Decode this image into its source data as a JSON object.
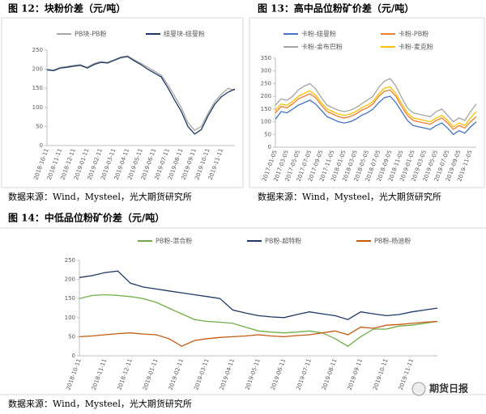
{
  "chart_data": [
    {
      "type": "line",
      "title": "图 12：块粉价差（元/吨）",
      "categories": [
        "2018-10-11",
        null,
        "2018-11-11",
        null,
        "2018-12-11",
        null,
        "2019-01-11",
        null,
        "2019-02-11",
        null,
        "2019-03-11",
        null,
        "2019-04-11",
        null,
        "2019-05-11",
        null,
        "2019-06-11",
        null,
        "2019-07-11",
        null,
        "2019-08-11",
        null,
        "2019-09-11",
        null,
        "2019-10-11",
        null,
        "2019-11-11",
        null,
        null
      ],
      "series": [
        {
          "name": "PB块-PB粉",
          "color": "#a6a6a6",
          "values": [
            200,
            198,
            205,
            207,
            210,
            212,
            205,
            215,
            220,
            218,
            225,
            232,
            235,
            225,
            215,
            205,
            195,
            185,
            160,
            130,
            100,
            60,
            40,
            50,
            85,
            115,
            135,
            150,
            145
          ]
        },
        {
          "name": "纽曼块-纽曼粉",
          "color": "#1f3864",
          "values": [
            198,
            196,
            203,
            205,
            208,
            210,
            203,
            212,
            218,
            216,
            223,
            230,
            233,
            222,
            212,
            200,
            190,
            180,
            152,
            120,
            90,
            50,
            30,
            42,
            78,
            108,
            128,
            140,
            148
          ]
        }
      ],
      "ylim": [
        0,
        250
      ],
      "yticks": [
        0,
        50,
        100,
        150,
        200,
        250
      ]
    },
    {
      "type": "line",
      "title": "图 13：高中品位粉矿价差（元/吨）",
      "categories": [
        "2017-01-05",
        null,
        "2017-03-05",
        null,
        "2017-05-05",
        null,
        "2017-07-05",
        null,
        "2017-09-05",
        null,
        "2017-11-05",
        null,
        "2018-01-05",
        null,
        "2018-03-05",
        null,
        "2018-05-05",
        null,
        "2018-07-05",
        null,
        "2018-09-05",
        null,
        "2018-11-05",
        null,
        "2019-01-05",
        null,
        "2019-03-05",
        null,
        "2019-05-05",
        null,
        "2019-07-05",
        null,
        "2019-09-05",
        null,
        "2019-11-05",
        null
      ],
      "series": [
        {
          "name": "卡粉-纽曼粉",
          "color": "#4472c4",
          "values": [
            110,
            140,
            135,
            150,
            165,
            175,
            185,
            170,
            145,
            120,
            110,
            100,
            95,
            100,
            110,
            125,
            135,
            150,
            175,
            195,
            200,
            175,
            140,
            105,
            85,
            80,
            75,
            70,
            85,
            95,
            75,
            50,
            65,
            55,
            80,
            100
          ]
        },
        {
          "name": "卡粉-PB粉",
          "color": "#ed7d31",
          "values": [
            135,
            160,
            155,
            170,
            190,
            200,
            210,
            195,
            165,
            140,
            130,
            120,
            115,
            120,
            130,
            145,
            155,
            170,
            200,
            220,
            225,
            200,
            160,
            125,
            105,
            100,
            95,
            90,
            105,
            115,
            95,
            70,
            85,
            75,
            100,
            120
          ]
        },
        {
          "name": "卡粉-金布巴粉",
          "color": "#a5a5a5",
          "values": [
            165,
            190,
            185,
            200,
            225,
            240,
            250,
            230,
            195,
            165,
            155,
            145,
            140,
            145,
            155,
            170,
            185,
            200,
            235,
            260,
            270,
            240,
            195,
            155,
            135,
            130,
            125,
            120,
            140,
            150,
            125,
            100,
            115,
            105,
            140,
            170
          ]
        },
        {
          "name": "卡粉-麦克粉",
          "color": "#ffc000",
          "values": [
            145,
            170,
            165,
            180,
            200,
            212,
            222,
            205,
            175,
            150,
            140,
            130,
            125,
            130,
            140,
            155,
            165,
            180,
            210,
            232,
            238,
            210,
            172,
            135,
            115,
            110,
            105,
            100,
            115,
            125,
            105,
            80,
            95,
            85,
            115,
            140
          ]
        }
      ],
      "ylim": [
        0,
        350
      ],
      "yticks": [
        0,
        50,
        100,
        150,
        200,
        250,
        300,
        350
      ]
    },
    {
      "type": "line",
      "title": "图 14：中低品位粉矿价差（元/吨）",
      "categories": [
        "2018-10-11",
        null,
        "2018-11-11",
        null,
        "2018-12-11",
        null,
        "2019-01-11",
        null,
        "2019-02-11",
        null,
        "2019-03-11",
        null,
        "2019-04-11",
        null,
        "2019-05-11",
        null,
        "2019-06-11",
        null,
        "2019-07-11",
        null,
        "2019-08-11",
        null,
        "2019-09-11",
        null,
        "2019-10-11",
        null,
        "2019-11-11",
        null,
        null
      ],
      "series": [
        {
          "name": "PB粉-混合粉",
          "color": "#70ad47",
          "values": [
            150,
            158,
            160,
            158,
            155,
            150,
            140,
            125,
            110,
            95,
            90,
            88,
            85,
            75,
            65,
            62,
            60,
            62,
            65,
            60,
            45,
            25,
            50,
            70,
            70,
            78,
            80,
            85,
            90
          ]
        },
        {
          "name": "PB粉-超特粉",
          "color": "#1f3864",
          "values": [
            205,
            210,
            218,
            222,
            190,
            180,
            175,
            170,
            165,
            160,
            155,
            150,
            120,
            112,
            105,
            102,
            100,
            108,
            115,
            110,
            105,
            95,
            115,
            110,
            105,
            108,
            115,
            120,
            125
          ]
        },
        {
          "name": "PB粉-杨迪粉",
          "color": "#c55a11",
          "values": [
            50,
            52,
            55,
            58,
            60,
            57,
            55,
            45,
            25,
            40,
            45,
            48,
            50,
            52,
            55,
            52,
            50,
            53,
            55,
            60,
            65,
            55,
            75,
            72,
            80,
            82,
            85,
            88,
            90
          ]
        }
      ],
      "ylim": [
        0,
        250
      ],
      "yticks": [
        0,
        50,
        100,
        150,
        200,
        250
      ]
    }
  ],
  "sources": [
    "数据来源：Wind，Mysteel，光大期货研究所",
    "数据来源：Wind，Mysteel，光大期货研究所",
    "数据来源：Wind，Mysteel，光大期货研究所"
  ],
  "watermark": "期货日报"
}
